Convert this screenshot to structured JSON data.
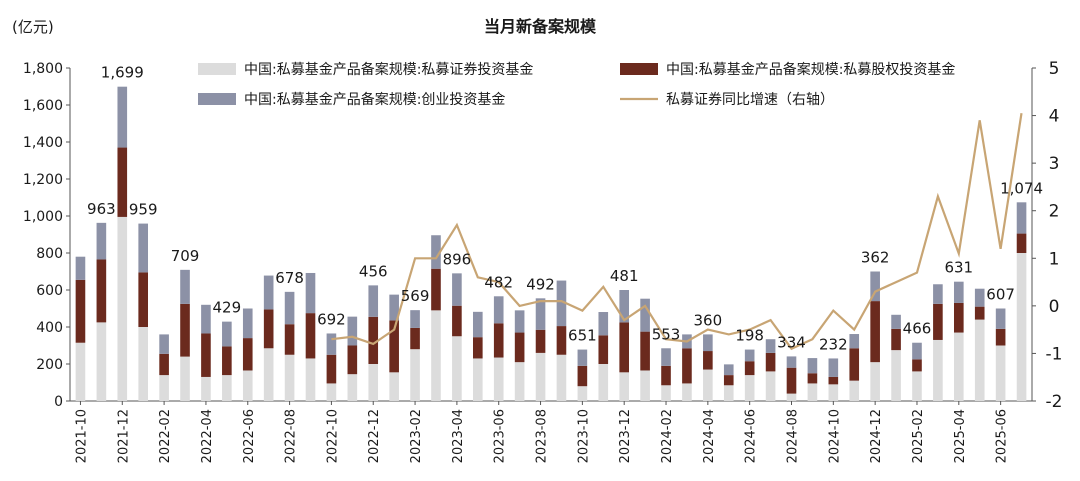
{
  "chart_data": {
    "type": "bar",
    "title": "当月新备案规模",
    "ylabel": "(亿元)",
    "ylim": [
      0,
      1800
    ],
    "yticks": [
      "0",
      "200",
      "400",
      "600",
      "800",
      "1,000",
      "1,200",
      "1,400",
      "1,600",
      "1,800"
    ],
    "y2lim": [
      -2,
      5
    ],
    "y2ticks": [
      "-2",
      "-1",
      "0",
      "1",
      "2",
      "3",
      "4",
      "5"
    ],
    "x_tick_labels": [
      "2021-10",
      "2021-12",
      "2022-02",
      "2022-04",
      "2022-06",
      "2022-08",
      "2022-10",
      "2022-12",
      "2023-02",
      "2023-04",
      "2023-06",
      "2023-08",
      "2023-10",
      "2023-12",
      "2024-02",
      "2024-04",
      "2024-06",
      "2024-08",
      "2024-10",
      "2024-12",
      "2025-02",
      "2025-04",
      "2025-06"
    ],
    "categories": [
      "2021-10",
      "2021-11",
      "2021-12",
      "2022-01",
      "2022-02",
      "2022-03",
      "2022-04",
      "2022-05",
      "2022-06",
      "2022-07",
      "2022-08",
      "2022-09",
      "2022-10",
      "2022-11",
      "2022-12",
      "2023-01",
      "2023-02",
      "2023-03",
      "2023-04",
      "2023-05",
      "2023-06",
      "2023-07",
      "2023-08",
      "2023-09",
      "2023-10",
      "2023-11",
      "2023-12",
      "2024-01",
      "2024-02",
      "2024-03",
      "2024-04",
      "2024-05",
      "2024-06",
      "2024-07",
      "2024-08",
      "2024-09",
      "2024-10",
      "2024-11",
      "2024-12",
      "2025-01",
      "2025-02",
      "2025-03",
      "2025-04",
      "2025-05",
      "2025-06",
      "2025-07"
    ],
    "legend_position": "top",
    "series": [
      {
        "name": "中国:私募基金产品备案规模:私募证券投资基金",
        "color": "#dcdcdc",
        "axis": "left",
        "values": [
          315,
          425,
          995,
          400,
          140,
          240,
          130,
          140,
          165,
          285,
          250,
          230,
          95,
          145,
          200,
          155,
          280,
          490,
          350,
          230,
          235,
          210,
          260,
          250,
          80,
          200,
          155,
          165,
          85,
          95,
          170,
          85,
          140,
          160,
          40,
          95,
          90,
          110,
          210,
          275,
          160,
          330,
          370,
          440,
          300,
          800
        ]
      },
      {
        "name": "中国:私募基金产品备案规模:私募股权投资基金",
        "color": "#6b2a1e",
        "axis": "left",
        "values": [
          340,
          340,
          375,
          295,
          115,
          285,
          235,
          155,
          175,
          210,
          165,
          245,
          155,
          155,
          255,
          280,
          115,
          225,
          165,
          115,
          185,
          160,
          125,
          155,
          110,
          155,
          270,
          210,
          105,
          190,
          100,
          55,
          75,
          100,
          140,
          55,
          40,
          175,
          330,
          115,
          65,
          195,
          160,
          70,
          90,
          105
        ]
      },
      {
        "name": "中国:私募基金产品备案规模:创业投资基金",
        "color": "#8c91a6",
        "axis": "left",
        "values": [
          125,
          198,
          329,
          264,
          105,
          184,
          155,
          134,
          160,
          183,
          175,
          217,
          115,
          156,
          170,
          140,
          96,
          181,
          175,
          137,
          146,
          120,
          170,
          246,
          88,
          126,
          175,
          178,
          95,
          75,
          90,
          58,
          63,
          74,
          61,
          82,
          100,
          77,
          160,
          76,
          90,
          106,
          115,
          97,
          110,
          169
        ]
      },
      {
        "name": "私募证券同比增速（右轴）",
        "type": "line",
        "color": "#c8a574",
        "axis": "right",
        "values": [
          null,
          null,
          null,
          null,
          null,
          null,
          null,
          null,
          null,
          null,
          null,
          null,
          -0.7,
          -0.65,
          -0.8,
          -0.5,
          1.0,
          1.0,
          1.7,
          0.6,
          0.5,
          0.0,
          0.1,
          0.1,
          -0.1,
          0.4,
          -0.3,
          0.0,
          -0.7,
          -0.75,
          -0.5,
          -0.6,
          -0.5,
          -0.3,
          -0.9,
          -0.7,
          -0.1,
          -0.5,
          0.3,
          0.5,
          0.7,
          2.3,
          1.1,
          3.9,
          1.2,
          4.05
        ]
      }
    ],
    "data_labels": [
      {
        "index": 0,
        "text": "963",
        "for_index": 1
      },
      {
        "index": 2,
        "text": "1,699"
      },
      {
        "index": 3,
        "text": "959"
      },
      {
        "index": 5,
        "text": "709"
      },
      {
        "index": 7,
        "text": "429"
      },
      {
        "index": 10,
        "text": "678"
      },
      {
        "index": 12,
        "text": "692"
      },
      {
        "index": 14,
        "text": "456"
      },
      {
        "index": 16,
        "text": "569"
      },
      {
        "index": 18,
        "text": "896"
      },
      {
        "index": 20,
        "text": "482"
      },
      {
        "index": 22,
        "text": "492"
      },
      {
        "index": 24,
        "text": "651"
      },
      {
        "index": 26,
        "text": "481"
      },
      {
        "index": 28,
        "text": "553"
      },
      {
        "index": 30,
        "text": "360"
      },
      {
        "index": 32,
        "text": "198"
      },
      {
        "index": 34,
        "text": "334"
      },
      {
        "index": 36,
        "text": "232"
      },
      {
        "index": 38,
        "text": "362"
      },
      {
        "index": 40,
        "text": "466"
      },
      {
        "index": 42,
        "text": "631"
      },
      {
        "index": 44,
        "text": "607"
      },
      {
        "index": 45,
        "text": "1,074"
      }
    ]
  }
}
